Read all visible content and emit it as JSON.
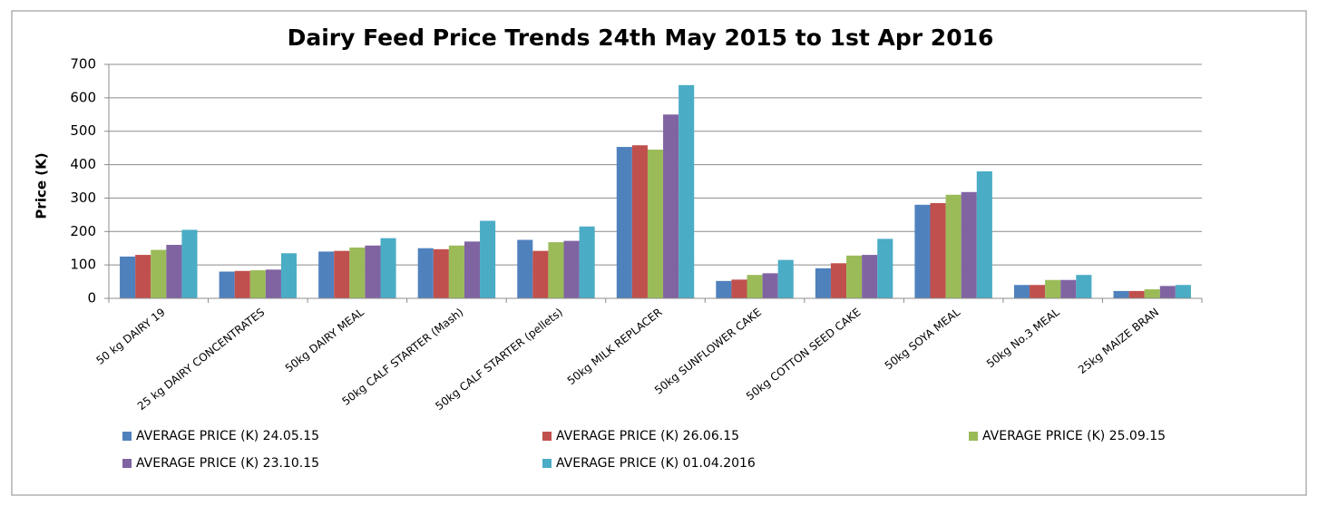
{
  "chart_data": {
    "type": "bar",
    "title": "Dairy Feed Price Trends 24th May 2015  to  1st Apr 2016",
    "y_label": "Price (K)",
    "categories": [
      "50 kg DAIRY 19",
      "25 kg DAIRY CONCENTRATES",
      "50kg DAIRY MEAL",
      "50kg CALF STARTER (Mash)",
      "50kg CALF STARTER (pellets)",
      "50kg MILK REPLACER",
      "50kg SUNFLOWER CAKE",
      "50kg COTTON SEED CAKE",
      "50kg SOYA MEAL",
      "50kg No.3 MEAL",
      "25kg MAIZE BRAN"
    ],
    "series": [
      {
        "name": "AVERAGE PRICE (K) 24.05.15",
        "color": "#4f81bd",
        "values": [
          125,
          80,
          140,
          150,
          175,
          453,
          52,
          90,
          280,
          40,
          22
        ]
      },
      {
        "name": "AVERAGE PRICE (K) 26.06.15",
        "color": "#c0504d",
        "values": [
          130,
          82,
          142,
          147,
          142,
          458,
          56,
          105,
          285,
          40,
          22
        ]
      },
      {
        "name": "AVERAGE PRICE (K) 25.09.15",
        "color": "#9bbb59",
        "values": [
          145,
          84,
          152,
          158,
          168,
          445,
          70,
          128,
          310,
          55,
          27
        ]
      },
      {
        "name": "AVERAGE PRICE (K) 23.10.15",
        "color": "#8064a2",
        "values": [
          160,
          86,
          158,
          170,
          172,
          550,
          75,
          130,
          318,
          55,
          37
        ]
      },
      {
        "name": "AVERAGE PRICE (K) 01.04.2016",
        "color": "#4bacc6",
        "values": [
          205,
          135,
          180,
          232,
          215,
          638,
          115,
          178,
          380,
          70,
          40
        ]
      }
    ],
    "ylim": [
      0,
      700
    ],
    "yticks": [
      0,
      100,
      200,
      300,
      400,
      500,
      600,
      700
    ],
    "grid": true,
    "legend": "bottom"
  }
}
